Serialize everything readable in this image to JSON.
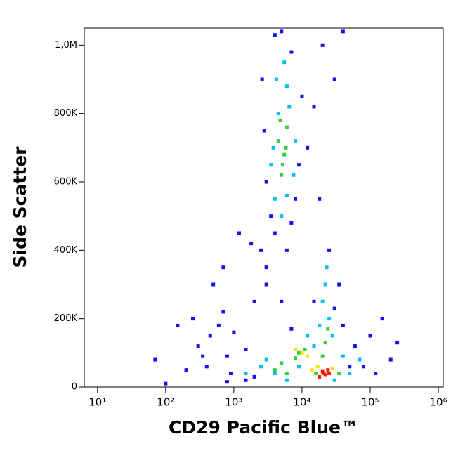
{
  "chart_data": {
    "type": "scatter",
    "xlabel": "CD29 Pacific Blue™",
    "ylabel": "Side Scatter",
    "xscale": "log",
    "xlim": [
      6.4,
      1180000
    ],
    "ylim": [
      0,
      1050000
    ],
    "xticks": [
      {
        "value": 10,
        "label": "10¹"
      },
      {
        "value": 100,
        "label": "10²"
      },
      {
        "value": 1000,
        "label": "10³"
      },
      {
        "value": 10000,
        "label": "10⁴"
      },
      {
        "value": 100000,
        "label": "10⁵"
      },
      {
        "value": 1000000,
        "label": "10⁶"
      }
    ],
    "yticks": [
      0,
      {
        "value": 200000,
        "label": "200K"
      },
      {
        "value": 400000,
        "label": "400K"
      },
      {
        "value": 600000,
        "label": "600K"
      },
      {
        "value": 800000,
        "label": "800K"
      },
      {
        "value": 1000000,
        "label": "1,0M"
      }
    ],
    "series": [
      {
        "color": "#1010f0",
        "x": [
          450,
          600,
          300,
          800,
          400,
          700,
          1000,
          250,
          350,
          1500,
          200,
          900,
          150,
          2000,
          3000,
          2500,
          4000,
          3500,
          7000,
          8000,
          3000,
          9000,
          2800,
          12000,
          15000,
          2600,
          7000,
          4000,
          20000,
          30000,
          18000,
          25000,
          35000,
          15000,
          40000,
          60000,
          100000,
          150000,
          250000,
          200000,
          80000,
          120000,
          1500,
          800,
          3000,
          1800,
          500,
          70,
          100,
          30000,
          6000,
          10000,
          5000,
          40000,
          5000,
          2000,
          700,
          1200,
          50000,
          7000
        ],
        "values": [
          150000,
          180000,
          120000,
          90000,
          60000,
          220000,
          160000,
          200000,
          90000,
          110000,
          50000,
          40000,
          180000,
          30000,
          300000,
          400000,
          450000,
          500000,
          480000,
          550000,
          600000,
          650000,
          750000,
          700000,
          820000,
          900000,
          980000,
          1030000,
          1000000,
          900000,
          550000,
          400000,
          300000,
          250000,
          180000,
          120000,
          150000,
          200000,
          130000,
          80000,
          60000,
          40000,
          20000,
          15000,
          350000,
          420000,
          300000,
          80000,
          10000,
          230000,
          400000,
          850000,
          1040000,
          1040000,
          250000,
          250000,
          350000,
          450000,
          60000,
          170000
        ]
      },
      {
        "color": "#00c0f0",
        "x": [
          4000,
          6000,
          3500,
          7500,
          4500,
          6500,
          4200,
          5500,
          3800,
          8000,
          5000,
          6000,
          22000,
          20000,
          25000,
          23000,
          18000,
          28000,
          3000,
          4000,
          40000,
          50000,
          12000,
          2500,
          6000,
          30000,
          70000,
          9000,
          1500,
          15000
        ],
        "values": [
          550000,
          560000,
          650000,
          620000,
          800000,
          820000,
          900000,
          950000,
          700000,
          720000,
          500000,
          880000,
          300000,
          250000,
          200000,
          350000,
          180000,
          150000,
          80000,
          40000,
          90000,
          40000,
          150000,
          60000,
          20000,
          20000,
          80000,
          60000,
          40000,
          120000
        ]
      },
      {
        "color": "#30d040",
        "x": [
          5000,
          5500,
          4500,
          6000,
          5200,
          5800,
          4800,
          9000,
          11000,
          8000,
          22000,
          20000,
          4000,
          5000,
          35000,
          16000,
          6000,
          24000
        ],
        "values": [
          620000,
          680000,
          720000,
          760000,
          650000,
          700000,
          780000,
          100000,
          110000,
          85000,
          130000,
          90000,
          50000,
          70000,
          40000,
          40000,
          40000,
          170000
        ]
      },
      {
        "color": "#f0e800",
        "x": [
          10000,
          12000,
          17000,
          28000,
          14000,
          8000
        ],
        "values": [
          100000,
          90000,
          60000,
          55000,
          50000,
          110000
        ]
      },
      {
        "color": "#f02010",
        "x": [
          20000,
          22000,
          25000,
          18000,
          24000,
          21000
        ],
        "values": [
          45000,
          35000,
          40000,
          30000,
          50000,
          40000
        ]
      }
    ]
  }
}
